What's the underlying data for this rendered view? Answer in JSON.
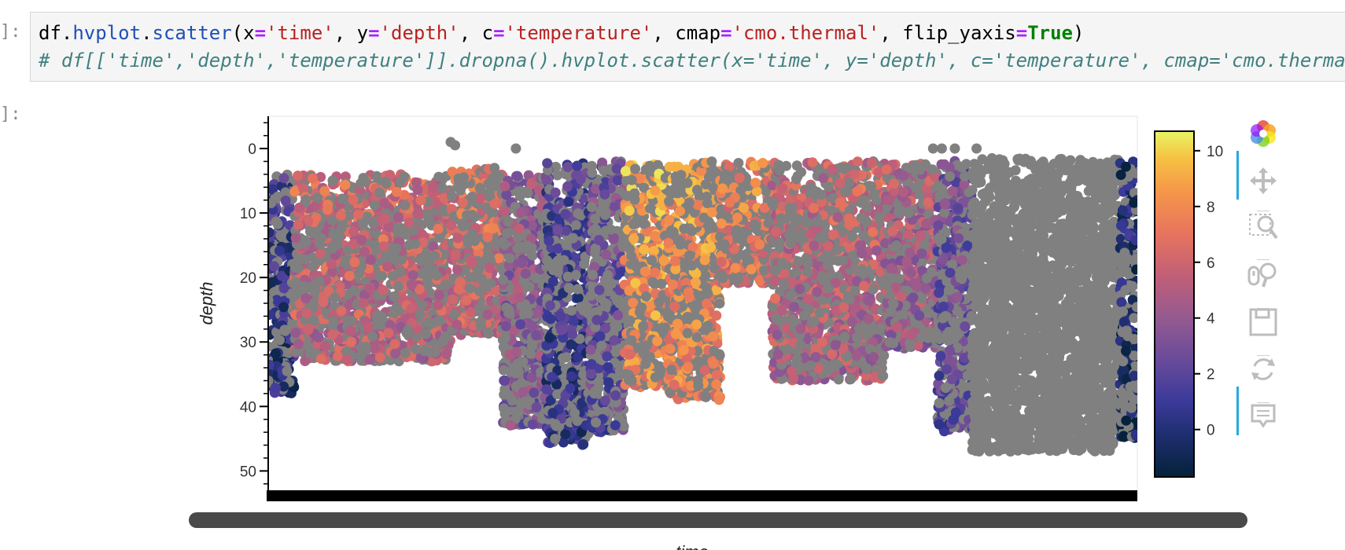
{
  "notebook": {
    "in_prompt": "]:",
    "out_prompt": "]:",
    "code_line_1": {
      "p1": "df.",
      "p2": "hvplot",
      "p3": ".",
      "p4": "scatter",
      "p5": "(x",
      "p6": "=",
      "p7": "'time'",
      "p8": ", y",
      "p9": "=",
      "p10": "'depth'",
      "p11": ", c",
      "p12": "=",
      "p13": "'temperature'",
      "p14": ", cmap",
      "p15": "=",
      "p16": "'cmo.thermal'",
      "p17": ", flip_yaxis",
      "p18": "=",
      "p19": "True",
      "p20": ")"
    },
    "code_line_2": "# df[['time','depth','temperature']].dropna().hvplot.scatter(x='time', y='depth', c='temperature', cmap='cmo.thermal'"
  },
  "chart_data": {
    "type": "scatter",
    "xlabel": "time",
    "ylabel": "depth",
    "ylim": [
      53,
      -5
    ],
    "y_inverted": true,
    "y_ticks": [
      "0",
      "10",
      "20",
      "30",
      "40",
      "50"
    ],
    "colorbar": {
      "cmap": "cmo.thermal",
      "range": [
        -1.7,
        10.7
      ],
      "ticks": [
        "0",
        "2",
        "4",
        "6",
        "8",
        "10"
      ],
      "nan_color": "#808080"
    },
    "x_range": [
      0,
      100
    ],
    "segments": [
      {
        "x": [
          0,
          3
        ],
        "ymin": 4,
        "ymax": 38,
        "t": 1.2
      },
      {
        "x": [
          3,
          21
        ],
        "ymin": 4,
        "ymax": 33,
        "t": 6.3
      },
      {
        "x": [
          21,
          27
        ],
        "ymin": 3,
        "ymax": 29,
        "t": 6.8
      },
      {
        "x": [
          27,
          32
        ],
        "ymin": 4,
        "ymax": 43,
        "t": 4.2
      },
      {
        "x": [
          32,
          37
        ],
        "ymin": 2,
        "ymax": 46,
        "t": 1.6
      },
      {
        "x": [
          37,
          41
        ],
        "ymin": 2,
        "ymax": 44,
        "t": 3.0
      },
      {
        "x": [
          41,
          46
        ],
        "ymin": 2,
        "ymax": 37,
        "t": 9.0
      },
      {
        "x": [
          46,
          52
        ],
        "ymin": 2,
        "ymax": 39,
        "t": 8.6
      },
      {
        "x": [
          52,
          58
        ],
        "ymin": 2,
        "ymax": 21,
        "t": 7.8
      },
      {
        "x": [
          58,
          71
        ],
        "ymin": 2,
        "ymax": 36,
        "t": 6.0
      },
      {
        "x": [
          71,
          77
        ],
        "ymin": 2,
        "ymax": 31,
        "t": 5.2
      },
      {
        "x": [
          77,
          81
        ],
        "ymin": 1.5,
        "ymax": 44,
        "t": 3.0
      },
      {
        "x": [
          81,
          98
        ],
        "ymin": 1.5,
        "ymax": 47,
        "t": null
      },
      {
        "x": [
          98,
          100
        ],
        "ymin": 2,
        "ymax": 45,
        "t": 0.0
      }
    ]
  },
  "toolbar": {
    "tools": [
      "bokeh-logo",
      "pan",
      "box-zoom",
      "wheel-zoom",
      "save",
      "reset",
      "hover"
    ]
  }
}
